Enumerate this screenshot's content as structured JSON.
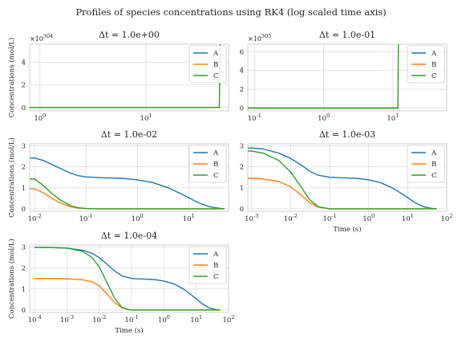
{
  "figure": {
    "title": "Profiles of species concentrations using RK4 (log scaled time axis)"
  },
  "colors": {
    "A": "#1f77b4",
    "B": "#ff7f0e",
    "C": "#2ca02c",
    "grid": "#dddddd",
    "axes": "#cccccc"
  },
  "chart_data": [
    {
      "type": "line",
      "title": "Δt = 1.0e+00",
      "xscale": "log",
      "xlim": [
        0.8,
        60
      ],
      "ylim": [
        -0.3,
        5.6
      ],
      "xticks": [
        {
          "v": 1,
          "label": "10^0"
        },
        {
          "v": 10,
          "label": "10^1"
        }
      ],
      "yticks": [
        0,
        2,
        4
      ],
      "offset_text": "×10^304",
      "xlabel": "",
      "ylabel": "Concentrations (mol/L)",
      "grid": true,
      "legend": "top-right",
      "series": [
        {
          "name": "A",
          "x": [
            0.8,
            1,
            5,
            10,
            30,
            50
          ],
          "y": [
            0,
            0,
            0,
            0,
            0,
            0
          ]
        },
        {
          "name": "B",
          "x": [
            0.8,
            1,
            5,
            10,
            30,
            50
          ],
          "y": [
            0,
            0,
            0,
            0,
            0,
            0
          ]
        },
        {
          "name": "C",
          "x": [
            0.8,
            1,
            5,
            10,
            30,
            49,
            50
          ],
          "y": [
            0,
            0,
            0,
            0,
            0,
            0,
            5.6
          ]
        }
      ]
    },
    {
      "type": "line",
      "title": "Δt = 1.0e-01",
      "xscale": "log",
      "xlim": [
        0.08,
        60
      ],
      "ylim": [
        -0.3,
        6.8
      ],
      "xticks": [
        {
          "v": 0.1,
          "label": "10^-1"
        },
        {
          "v": 1,
          "label": "10^0"
        },
        {
          "v": 10,
          "label": "10^1"
        }
      ],
      "yticks": [
        0,
        2,
        4,
        6
      ],
      "offset_text": "×10^305",
      "xlabel": "",
      "ylabel": "",
      "grid": true,
      "legend": "top-right",
      "series": [
        {
          "name": "A",
          "x": [
            0.08,
            0.1,
            1,
            10,
            11.9,
            12
          ],
          "y": [
            0,
            0,
            0,
            0,
            0,
            0
          ]
        },
        {
          "name": "B",
          "x": [
            0.08,
            0.1,
            1,
            10,
            11.9,
            12
          ],
          "y": [
            0,
            0,
            0,
            0,
            0,
            0
          ]
        },
        {
          "name": "C",
          "x": [
            0.08,
            0.1,
            1,
            10,
            11.8,
            12
          ],
          "y": [
            0,
            0,
            0,
            0,
            0,
            6.8
          ]
        }
      ]
    },
    {
      "type": "line",
      "title": "Δt = 1.0e-02",
      "xscale": "log",
      "xlim": [
        0.008,
        60
      ],
      "ylim": [
        -0.12,
        3.1
      ],
      "xticks": [
        {
          "v": 0.01,
          "label": "10^-2"
        },
        {
          "v": 0.1,
          "label": "10^-1"
        },
        {
          "v": 1,
          "label": "10^0"
        },
        {
          "v": 10,
          "label": "10^1"
        }
      ],
      "yticks": [
        0,
        1,
        2,
        3
      ],
      "xlabel": "",
      "ylabel": "Concentrations (mol/L)",
      "grid": true,
      "legend": "top-right",
      "series": [
        {
          "name": "A",
          "x": [
            0.008,
            0.01,
            0.015,
            0.02,
            0.03,
            0.05,
            0.07,
            0.1,
            0.2,
            0.5,
            1,
            2,
            4,
            8,
            15,
            25,
            40,
            50
          ],
          "y": [
            2.42,
            2.42,
            2.3,
            2.15,
            1.95,
            1.7,
            1.58,
            1.52,
            1.48,
            1.45,
            1.38,
            1.25,
            1.0,
            0.65,
            0.3,
            0.1,
            0.02,
            0.0
          ]
        },
        {
          "name": "B",
          "x": [
            0.008,
            0.01,
            0.015,
            0.02,
            0.03,
            0.05,
            0.07,
            0.1,
            0.15,
            0.3,
            1,
            10,
            50
          ],
          "y": [
            0.95,
            0.95,
            0.75,
            0.55,
            0.3,
            0.1,
            0.03,
            0.01,
            0.0,
            0.0,
            0.0,
            0.0,
            0.0
          ]
        },
        {
          "name": "C",
          "x": [
            0.008,
            0.01,
            0.015,
            0.02,
            0.03,
            0.05,
            0.07,
            0.1,
            0.15,
            0.3,
            1,
            10,
            50
          ],
          "y": [
            1.42,
            1.42,
            1.1,
            0.8,
            0.45,
            0.15,
            0.05,
            0.01,
            0.0,
            0.0,
            0.0,
            0.0,
            0.0
          ]
        }
      ]
    },
    {
      "type": "line",
      "title": "Δt = 1.0e-03",
      "xscale": "log",
      "xlim": [
        0.0008,
        100
      ],
      "ylim": [
        -0.12,
        3.1
      ],
      "xticks": [
        {
          "v": 0.001,
          "label": "10^-3"
        },
        {
          "v": 0.01,
          "label": "10^-2"
        },
        {
          "v": 0.1,
          "label": "10^-1"
        },
        {
          "v": 1,
          "label": "10^0"
        },
        {
          "v": 10,
          "label": "10^1"
        },
        {
          "v": 100,
          "label": "10^2"
        }
      ],
      "yticks": [
        0,
        1,
        2,
        3
      ],
      "xlabel": "Time (s)",
      "ylabel": "",
      "grid": true,
      "legend": "top-right",
      "series": [
        {
          "name": "A",
          "x": [
            0.0008,
            0.001,
            0.002,
            0.005,
            0.01,
            0.02,
            0.03,
            0.05,
            0.1,
            0.2,
            0.5,
            1,
            2,
            4,
            8,
            15,
            25,
            40,
            55
          ],
          "y": [
            2.9,
            2.9,
            2.85,
            2.65,
            2.4,
            2.05,
            1.8,
            1.6,
            1.5,
            1.48,
            1.45,
            1.38,
            1.25,
            1.0,
            0.65,
            0.3,
            0.1,
            0.02,
            0.0
          ]
        },
        {
          "name": "B",
          "x": [
            0.0008,
            0.001,
            0.002,
            0.005,
            0.01,
            0.02,
            0.03,
            0.05,
            0.1,
            1,
            10,
            55
          ],
          "y": [
            1.45,
            1.45,
            1.42,
            1.3,
            1.05,
            0.6,
            0.3,
            0.08,
            0.0,
            0.0,
            0.0,
            0.0
          ]
        },
        {
          "name": "C",
          "x": [
            0.0008,
            0.001,
            0.002,
            0.005,
            0.01,
            0.02,
            0.03,
            0.05,
            0.1,
            1,
            10,
            55
          ],
          "y": [
            2.75,
            2.75,
            2.65,
            2.3,
            1.75,
            0.95,
            0.45,
            0.1,
            0.0,
            0.0,
            0.0,
            0.0
          ]
        }
      ]
    },
    {
      "type": "line",
      "title": "Δt = 1.0e-04",
      "xscale": "log",
      "xlim": [
        7e-05,
        100
      ],
      "ylim": [
        -0.12,
        3.1
      ],
      "xticks": [
        {
          "v": 0.0001,
          "label": "10^-4"
        },
        {
          "v": 0.001,
          "label": "10^-3"
        },
        {
          "v": 0.01,
          "label": "10^-2"
        },
        {
          "v": 0.1,
          "label": "10^-1"
        },
        {
          "v": 1,
          "label": "10^0"
        },
        {
          "v": 10,
          "label": "10^1"
        },
        {
          "v": 100,
          "label": "10^2"
        }
      ],
      "yticks": [
        0,
        1,
        2,
        3
      ],
      "xlabel": "Time (s)",
      "ylabel": "Concentrations (mol/L)",
      "grid": true,
      "legend": "top-right",
      "series": [
        {
          "name": "A",
          "x": [
            0.0001,
            0.0003,
            0.001,
            0.003,
            0.006,
            0.01,
            0.02,
            0.03,
            0.05,
            0.1,
            0.2,
            0.5,
            1,
            2,
            4,
            8,
            15,
            25,
            40,
            55
          ],
          "y": [
            2.99,
            2.98,
            2.95,
            2.85,
            2.7,
            2.5,
            2.1,
            1.85,
            1.62,
            1.5,
            1.48,
            1.45,
            1.38,
            1.25,
            1.0,
            0.65,
            0.3,
            0.1,
            0.02,
            0.0
          ]
        },
        {
          "name": "B",
          "x": [
            0.0001,
            0.0003,
            0.001,
            0.003,
            0.006,
            0.01,
            0.02,
            0.03,
            0.05,
            0.08,
            0.1,
            0.2,
            1,
            10,
            55
          ],
          "y": [
            1.5,
            1.5,
            1.49,
            1.44,
            1.35,
            1.15,
            0.65,
            0.35,
            0.1,
            0.02,
            0.0,
            0.0,
            0.0,
            0.0,
            0.0
          ]
        },
        {
          "name": "C",
          "x": [
            0.0001,
            0.0003,
            0.001,
            0.003,
            0.006,
            0.01,
            0.02,
            0.03,
            0.05,
            0.08,
            0.1,
            0.2,
            1,
            10,
            55
          ],
          "y": [
            2.99,
            2.98,
            2.95,
            2.8,
            2.5,
            2.05,
            1.1,
            0.55,
            0.12,
            0.02,
            0.0,
            0.0,
            0.0,
            0.0,
            0.0
          ]
        }
      ]
    }
  ]
}
